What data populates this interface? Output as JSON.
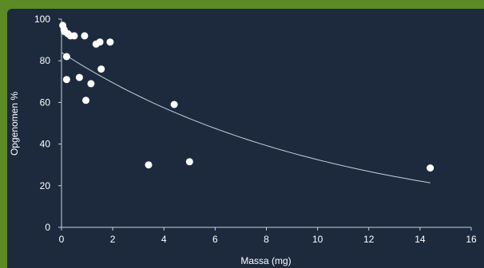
{
  "chart_data": {
    "type": "scatter",
    "title": "",
    "xlabel": "Massa (mg)",
    "ylabel": "Opgenomen %",
    "xlim": [
      0,
      16
    ],
    "ylim": [
      0,
      100
    ],
    "xticks": [
      "0",
      "2",
      "4",
      "6",
      "8",
      "10",
      "12",
      "14",
      "16"
    ],
    "yticks": [
      "0",
      "20",
      "40",
      "60",
      "80",
      "100"
    ],
    "grid": false,
    "legend": "none",
    "colors": {
      "points": "#ffffff",
      "trendline": "#c8d0dc",
      "axis": "#c8d0dc",
      "background": "#1d2a3e",
      "frame": "#5c8a24"
    },
    "series": [
      {
        "points": [
          {
            "x": 0.05,
            "y": 97
          },
          {
            "x": 0.1,
            "y": 95
          },
          {
            "x": 0.12,
            "y": 94
          },
          {
            "x": 0.25,
            "y": 93
          },
          {
            "x": 0.35,
            "y": 92
          },
          {
            "x": 0.5,
            "y": 92
          },
          {
            "x": 0.9,
            "y": 92
          },
          {
            "x": 1.35,
            "y": 88
          },
          {
            "x": 1.5,
            "y": 89
          },
          {
            "x": 1.9,
            "y": 89
          },
          {
            "x": 0.2,
            "y": 82
          },
          {
            "x": 1.55,
            "y": 76
          },
          {
            "x": 0.7,
            "y": 72
          },
          {
            "x": 0.2,
            "y": 71
          },
          {
            "x": 1.15,
            "y": 69
          },
          {
            "x": 0.95,
            "y": 61
          },
          {
            "x": 4.4,
            "y": 59
          },
          {
            "x": 3.4,
            "y": 30
          },
          {
            "x": 5.0,
            "y": 31.5
          },
          {
            "x": 14.4,
            "y": 28.5
          }
        ]
      }
    ],
    "trendline": {
      "type": "exponential",
      "a": 84,
      "b": -0.095,
      "x_range": [
        0,
        14.4
      ]
    }
  }
}
